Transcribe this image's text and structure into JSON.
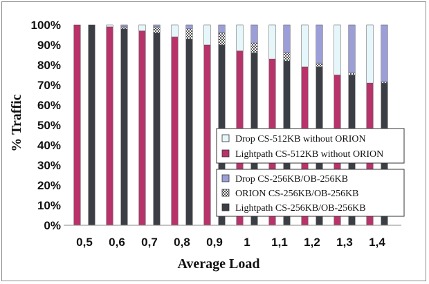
{
  "chart_data": {
    "type": "bar",
    "xlabel": "Average Load",
    "ylabel": "% Traffic",
    "ylim": [
      0,
      100
    ],
    "yticks": [
      "0%",
      "10%",
      "20%",
      "30%",
      "40%",
      "50%",
      "60%",
      "70%",
      "80%",
      "90%",
      "100%"
    ],
    "categories": [
      "0,5",
      "0,6",
      "0,7",
      "0,8",
      "0,9",
      "1",
      "1,1",
      "1,2",
      "1,3",
      "1,4"
    ],
    "groups": [
      {
        "name": "without ORION",
        "series": [
          {
            "name": "Lightpath CS-512KB without ORION",
            "color": "#b8336a",
            "values": [
              100,
              99,
              97,
              94,
              90,
              87,
              83,
              79,
              75,
              71
            ]
          },
          {
            "name": "Drop CS-512KB without ORION",
            "color": "#e6f7fb",
            "values": [
              0,
              1,
              3,
              6,
              10,
              13,
              17,
              21,
              25,
              29
            ]
          }
        ]
      },
      {
        "name": "CS-256KB/OB-256KB",
        "series": [
          {
            "name": "Lightpath CS-256KB/OB-256KB",
            "color": "#3b3f45",
            "values": [
              100,
              98,
              96,
              93,
              90,
              86,
              82,
              79,
              75,
              71
            ]
          },
          {
            "name": "ORION CS-256KB/OB-256KB",
            "color": "#dcdcdc",
            "values": [
              0,
              1,
              3,
              5,
              6,
              5,
              4,
              2,
              1,
              0.5
            ]
          },
          {
            "name": "Drop CS-256KB/OB-256KB",
            "color": "#9c9ed8",
            "values": [
              0,
              1,
              1,
              2,
              4,
              9,
              14,
              19,
              24,
              28.5
            ]
          }
        ]
      }
    ],
    "legend": [
      [
        "Drop CS-512KB without ORION",
        "Lightpath CS-512KB without ORION"
      ],
      [
        "Drop CS-256KB/OB-256KB",
        "ORION CS-256KB/OB-256KB",
        "Lightpath CS-256KB/OB-256KB"
      ]
    ],
    "legend_position": "center-right",
    "grid": false
  }
}
